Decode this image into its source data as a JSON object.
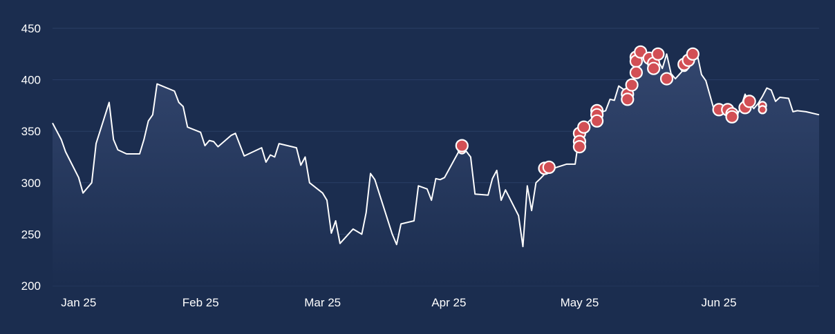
{
  "colors": {
    "background": "#1b2d4f",
    "grid": "#2b3f66",
    "line": "#ffffff",
    "area_top": "#33466e",
    "area_bottom": "#1b2d4f",
    "marker_fill": "#d24f55",
    "marker_stroke": "#ffffff",
    "text": "#ffffff"
  },
  "chart_data": {
    "type": "line",
    "title": "",
    "xlabel": "",
    "ylabel": "",
    "ylim": [
      200,
      455
    ],
    "xlim": [
      "2024-12-31",
      "2025-06-25"
    ],
    "grid": {
      "horizontal": true,
      "vertical": false
    },
    "legend": "none",
    "y_ticks": [
      200,
      250,
      300,
      350,
      400,
      450
    ],
    "x_ticks": [
      {
        "date": "2025-01-06",
        "label": "Jan 25"
      },
      {
        "date": "2025-02-03",
        "label": "Feb 25"
      },
      {
        "date": "2025-03-03",
        "label": "Mar 25"
      },
      {
        "date": "2025-04-01",
        "label": "Apr 25"
      },
      {
        "date": "2025-05-01",
        "label": "May 25"
      },
      {
        "date": "2025-06-02",
        "label": "Jun 25"
      }
    ],
    "series": [
      {
        "type": "area",
        "points": [
          [
            "2024-12-31",
            358
          ],
          [
            "2025-01-02",
            342
          ],
          [
            "2025-01-03",
            330
          ],
          [
            "2025-01-06",
            305
          ],
          [
            "2025-01-07",
            290
          ],
          [
            "2025-01-09",
            300
          ],
          [
            "2025-01-10",
            338
          ],
          [
            "2025-01-13",
            378
          ],
          [
            "2025-01-14",
            342
          ],
          [
            "2025-01-15",
            332
          ],
          [
            "2025-01-17",
            328
          ],
          [
            "2025-01-20",
            328
          ],
          [
            "2025-01-21",
            342
          ],
          [
            "2025-01-22",
            360
          ],
          [
            "2025-01-23",
            366
          ],
          [
            "2025-01-24",
            396
          ],
          [
            "2025-01-28",
            389
          ],
          [
            "2025-01-29",
            378
          ],
          [
            "2025-01-30",
            374
          ],
          [
            "2025-01-31",
            354
          ],
          [
            "2025-02-03",
            349
          ],
          [
            "2025-02-04",
            336
          ],
          [
            "2025-02-05",
            341
          ],
          [
            "2025-02-06",
            340
          ],
          [
            "2025-02-07",
            335
          ],
          [
            "2025-02-10",
            346
          ],
          [
            "2025-02-11",
            348
          ],
          [
            "2025-02-13",
            326
          ],
          [
            "2025-02-17",
            334
          ],
          [
            "2025-02-18",
            320
          ],
          [
            "2025-02-19",
            327
          ],
          [
            "2025-02-20",
            325
          ],
          [
            "2025-02-21",
            338
          ],
          [
            "2025-02-25",
            334
          ],
          [
            "2025-02-26",
            317
          ],
          [
            "2025-02-27",
            325
          ],
          [
            "2025-02-28",
            300
          ],
          [
            "2025-03-03",
            290
          ],
          [
            "2025-03-04",
            283
          ],
          [
            "2025-03-05",
            251
          ],
          [
            "2025-03-06",
            263
          ],
          [
            "2025-03-07",
            241
          ],
          [
            "2025-03-10",
            255
          ],
          [
            "2025-03-12",
            250
          ],
          [
            "2025-03-13",
            271
          ],
          [
            "2025-03-14",
            309
          ],
          [
            "2025-03-15",
            303
          ],
          [
            "2025-03-19",
            250
          ],
          [
            "2025-03-20",
            240
          ],
          [
            "2025-03-21",
            260
          ],
          [
            "2025-03-24",
            263
          ],
          [
            "2025-03-25",
            297
          ],
          [
            "2025-03-27",
            294
          ],
          [
            "2025-03-28",
            283
          ],
          [
            "2025-03-29",
            304
          ],
          [
            "2025-03-30",
            303
          ],
          [
            "2025-03-31",
            305
          ],
          [
            "2025-04-04",
            336
          ],
          [
            "2025-04-06",
            325
          ],
          [
            "2025-04-07",
            289
          ],
          [
            "2025-04-10",
            288
          ],
          [
            "2025-04-11",
            304
          ],
          [
            "2025-04-12",
            312
          ],
          [
            "2025-04-13",
            283
          ],
          [
            "2025-04-14",
            293
          ],
          [
            "2025-04-17",
            268
          ],
          [
            "2025-04-18",
            238
          ],
          [
            "2025-04-19",
            297
          ],
          [
            "2025-04-20",
            273
          ],
          [
            "2025-04-21",
            300
          ],
          [
            "2025-04-22",
            304
          ],
          [
            "2025-04-24",
            313
          ],
          [
            "2025-04-25",
            314
          ],
          [
            "2025-04-28",
            318
          ],
          [
            "2025-04-30",
            318
          ],
          [
            "2025-05-01",
            348
          ],
          [
            "2025-05-02",
            355
          ],
          [
            "2025-05-05",
            367
          ],
          [
            "2025-05-07",
            370
          ],
          [
            "2025-05-08",
            381
          ],
          [
            "2025-05-09",
            380
          ],
          [
            "2025-05-10",
            394
          ],
          [
            "2025-05-12",
            388
          ],
          [
            "2025-05-13",
            395
          ],
          [
            "2025-05-14",
            407
          ],
          [
            "2025-05-15",
            427
          ],
          [
            "2025-05-16",
            427
          ],
          [
            "2025-05-17",
            411
          ],
          [
            "2025-05-19",
            419
          ],
          [
            "2025-05-20",
            411
          ],
          [
            "2025-05-21",
            425
          ],
          [
            "2025-05-22",
            406
          ],
          [
            "2025-05-23",
            401
          ],
          [
            "2025-05-26",
            415
          ],
          [
            "2025-05-27",
            419
          ],
          [
            "2025-05-28",
            425
          ],
          [
            "2025-05-29",
            405
          ],
          [
            "2025-05-30",
            399
          ],
          [
            "2025-06-01",
            369
          ],
          [
            "2025-06-03",
            372
          ],
          [
            "2025-06-04",
            371
          ],
          [
            "2025-06-05",
            370
          ],
          [
            "2025-06-06",
            364
          ],
          [
            "2025-06-07",
            373
          ],
          [
            "2025-06-08",
            386
          ],
          [
            "2025-06-09",
            378
          ],
          [
            "2025-06-10",
            372
          ],
          [
            "2025-06-11",
            377
          ],
          [
            "2025-06-12",
            384
          ],
          [
            "2025-06-13",
            392
          ],
          [
            "2025-06-14",
            390
          ],
          [
            "2025-06-15",
            379
          ],
          [
            "2025-06-16",
            383
          ],
          [
            "2025-06-18",
            382
          ],
          [
            "2025-06-19",
            369
          ],
          [
            "2025-06-20",
            370
          ],
          [
            "2025-06-22",
            369
          ],
          [
            "2025-06-25",
            366
          ]
        ]
      },
      {
        "type": "scatter",
        "points": [
          [
            "2025-04-04",
            332,
            5.5
          ],
          [
            "2025-04-04",
            336,
            8.5
          ],
          [
            "2025-04-23",
            314,
            8.5
          ],
          [
            "2025-04-24",
            315,
            8.5
          ],
          [
            "2025-05-01",
            348,
            8.5
          ],
          [
            "2025-05-01",
            340,
            8.5
          ],
          [
            "2025-05-01",
            335,
            8.5
          ],
          [
            "2025-05-02",
            354,
            8.5
          ],
          [
            "2025-05-05",
            370,
            8.5
          ],
          [
            "2025-05-05",
            366,
            8.5
          ],
          [
            "2025-05-05",
            360,
            8.5
          ],
          [
            "2025-05-12",
            386,
            8.5
          ],
          [
            "2025-05-12",
            381,
            8.5
          ],
          [
            "2025-05-13",
            395,
            8.5
          ],
          [
            "2025-05-14",
            422,
            8.5
          ],
          [
            "2025-05-14",
            418,
            8.5
          ],
          [
            "2025-05-14",
            407,
            8.5
          ],
          [
            "2025-05-15",
            427,
            8.5
          ],
          [
            "2025-05-17",
            421,
            8.5
          ],
          [
            "2025-05-18",
            416,
            8.5
          ],
          [
            "2025-05-18",
            411,
            8.5
          ],
          [
            "2025-05-19",
            425,
            8.5
          ],
          [
            "2025-05-21",
            401,
            8.5
          ],
          [
            "2025-05-25",
            412,
            5.5
          ],
          [
            "2025-05-25",
            415,
            8.5
          ],
          [
            "2025-05-26",
            419,
            8.5
          ],
          [
            "2025-05-27",
            425,
            8.5
          ],
          [
            "2025-06-02",
            371,
            8.5
          ],
          [
            "2025-06-04",
            371,
            8.5
          ],
          [
            "2025-06-05",
            367,
            8.5
          ],
          [
            "2025-06-05",
            364,
            8.5
          ],
          [
            "2025-06-08",
            373,
            8.5
          ],
          [
            "2025-06-09",
            379,
            8.5
          ],
          [
            "2025-06-12",
            375,
            5.5
          ],
          [
            "2025-06-12",
            371,
            5.5
          ]
        ]
      }
    ]
  }
}
